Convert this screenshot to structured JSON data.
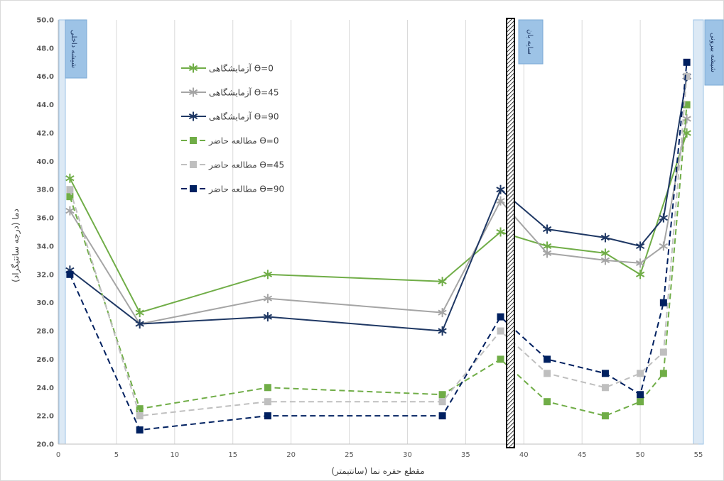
{
  "chart_data": {
    "type": "line",
    "xlabel": "مقطع حفره نما (سانتیمتر)",
    "ylabel": "دما (درجه سانتیگراد)",
    "xlim": [
      0,
      55
    ],
    "ylim": [
      20,
      50
    ],
    "xticks": [
      0,
      5,
      10,
      15,
      20,
      25,
      30,
      35,
      40,
      45,
      50,
      55
    ],
    "yticks": [
      "20.0",
      "22.0",
      "24.0",
      "26.0",
      "28.0",
      "30.0",
      "32.0",
      "34.0",
      "36.0",
      "38.0",
      "40.0",
      "42.0",
      "44.0",
      "46.0",
      "48.0",
      "50.0"
    ],
    "grid": "vertical",
    "legend_position": "top-left",
    "panels": {
      "inner_glass": "شیشه داخلی",
      "outer_glass": "شیشه بیرونی",
      "blind": "سایه بان"
    },
    "series": [
      {
        "name": "آزمایشگاهی Ɵ=0",
        "color": "#70ad47",
        "dash": false,
        "marker": "star",
        "x": [
          1,
          7,
          18,
          33,
          38,
          42,
          47,
          50,
          54
        ],
        "y": [
          38.8,
          29.3,
          32.0,
          31.5,
          35.0,
          34.0,
          33.5,
          32.0,
          42.0
        ]
      },
      {
        "name": "آزمایشگاهی Ɵ=45",
        "color": "#a5a5a5",
        "dash": false,
        "marker": "star",
        "x": [
          1,
          7,
          18,
          33,
          38,
          42,
          47,
          50,
          52,
          54
        ],
        "y": [
          36.5,
          28.5,
          30.3,
          29.3,
          37.2,
          33.5,
          33.0,
          32.8,
          34.0,
          43.0
        ]
      },
      {
        "name": "آزمایشگاهی Ɵ=90",
        "color": "#1f3864",
        "dash": false,
        "marker": "star",
        "x": [
          1,
          7,
          18,
          33,
          38,
          42,
          47,
          50,
          52,
          54
        ],
        "y": [
          32.3,
          28.5,
          29.0,
          28.0,
          38.0,
          35.2,
          34.6,
          34.0,
          36.0,
          46.0
        ]
      },
      {
        "name": "مطالعه حاضر Ɵ=0",
        "color": "#70ad47",
        "dash": true,
        "marker": "square",
        "x": [
          1,
          7,
          18,
          33,
          38,
          42,
          47,
          50,
          52,
          54
        ],
        "y": [
          37.5,
          22.5,
          24.0,
          23.5,
          26.0,
          23.0,
          22.0,
          23.0,
          25.0,
          44.0
        ]
      },
      {
        "name": "مطالعه حاضر Ɵ=45",
        "color": "#bfbfbf",
        "dash": true,
        "marker": "square",
        "x": [
          1,
          7,
          18,
          33,
          38,
          42,
          47,
          50,
          52,
          54
        ],
        "y": [
          38.0,
          22.0,
          23.0,
          23.0,
          28.0,
          25.0,
          24.0,
          25.0,
          26.5,
          46.0
        ]
      },
      {
        "name": "مطالعه حاضر Ɵ=90",
        "color": "#002060",
        "dash": true,
        "marker": "square",
        "x": [
          1,
          7,
          18,
          33,
          38,
          42,
          47,
          50,
          52,
          54
        ],
        "y": [
          32.0,
          21.0,
          22.0,
          22.0,
          29.0,
          26.0,
          25.0,
          23.5,
          30.0,
          47.0
        ]
      }
    ]
  }
}
